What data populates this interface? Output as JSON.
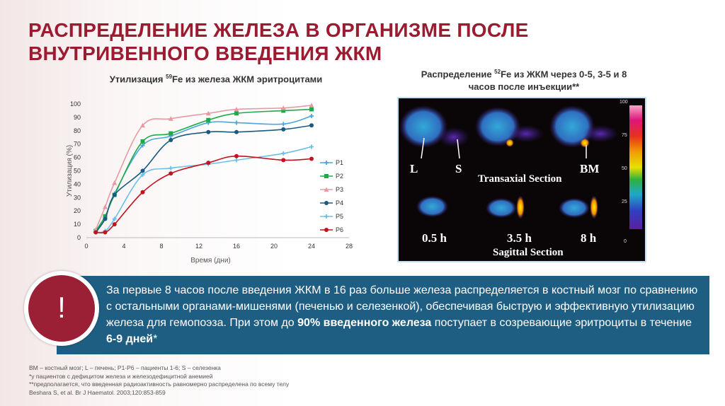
{
  "title": [
    "РАСПРЕДЕЛЕНИЕ ЖЕЛЕЗА В ОРГАНИЗМЕ ПОСЛЕ",
    "ВНУТРИВЕННОГО ВВЕДЕНИЯ ЖКМ"
  ],
  "chart_data": {
    "type": "line",
    "title_pre": "Утилизация ",
    "title_sup": "59",
    "title_post": "Fe из железа  ЖКМ эритроцитами",
    "xlabel": "Время (дни)",
    "ylabel": "Утилизация (%)",
    "xlim": [
      0,
      28
    ],
    "ylim": [
      0,
      100
    ],
    "xticks": [
      0,
      4,
      8,
      12,
      16,
      20,
      24,
      28
    ],
    "yticks": [
      0,
      10,
      20,
      30,
      40,
      50,
      60,
      70,
      80,
      90,
      100
    ],
    "x": [
      1,
      2,
      3,
      6,
      9,
      13,
      16,
      21,
      24
    ],
    "legend": "right",
    "series": [
      {
        "name": "P1",
        "color": "#4da6d9",
        "marker": "plus",
        "values": [
          4,
          15,
          33,
          69,
          76,
          86,
          86,
          85,
          91
        ]
      },
      {
        "name": "P2",
        "color": "#1faa4a",
        "marker": "square",
        "values": [
          5,
          16,
          32,
          72,
          78,
          88,
          93,
          95,
          96
        ]
      },
      {
        "name": "P3",
        "color": "#e89aa4",
        "marker": "triangle",
        "values": [
          6,
          23,
          41,
          84,
          89,
          93,
          96,
          97,
          99
        ]
      },
      {
        "name": "P4",
        "color": "#1b5a80",
        "marker": "circle",
        "values": [
          4,
          14,
          32,
          50,
          73,
          79,
          79,
          81,
          84
        ]
      },
      {
        "name": "P5",
        "color": "#6cc0e8",
        "marker": "plus",
        "values": [
          4,
          5,
          14,
          47,
          52,
          55,
          58,
          63,
          68
        ]
      },
      {
        "name": "P6",
        "color": "#c0141e",
        "marker": "circle",
        "values": [
          4,
          4,
          10,
          34,
          48,
          56,
          61,
          58,
          59
        ]
      }
    ]
  },
  "image_panel": {
    "title_pre": "Распределение ",
    "title_sup": "52",
    "title_post": "Fe из ЖКМ через 0-5, 3-5 и 8",
    "title_line2": "часов после инъекции**",
    "labels": {
      "L": "L",
      "S": "S",
      "BM": "BM",
      "transaxial": "Transaxial Section",
      "sagittal": "Sagittal Section",
      "t1": "0.5 h",
      "t2": "3.5 h",
      "t3": "8 h"
    },
    "scale": [
      "100",
      "75",
      "50",
      "25",
      "0"
    ]
  },
  "callout": {
    "icon": "!",
    "t1": "За первые 8 часов после введения ЖКМ в 16 раз больше железа распределяется в костный мозг по сравнению с остальными органами-мишенями (печенью и селезенкой), обеспечивая быструю и эффективную утилизацию железа для гемопоэза. При этом до ",
    "b1": "90% введенного железа",
    "t2": " поступает в созревающие эритроциты в течение ",
    "b2": "6-9 дней",
    "t3": "*"
  },
  "footnotes": [
    "BM – костный мозг; L – печень; P1-P6 – пациенты 1-6; S – селезенка",
    "*у пациентов с дефицитом железа и железодефицитной анемией",
    "**предполагается, что введенная радиоактивность равномерно распределена по всему телу",
    "Beshara S, et al. Br J Haematol. 2003;120:853-859"
  ]
}
